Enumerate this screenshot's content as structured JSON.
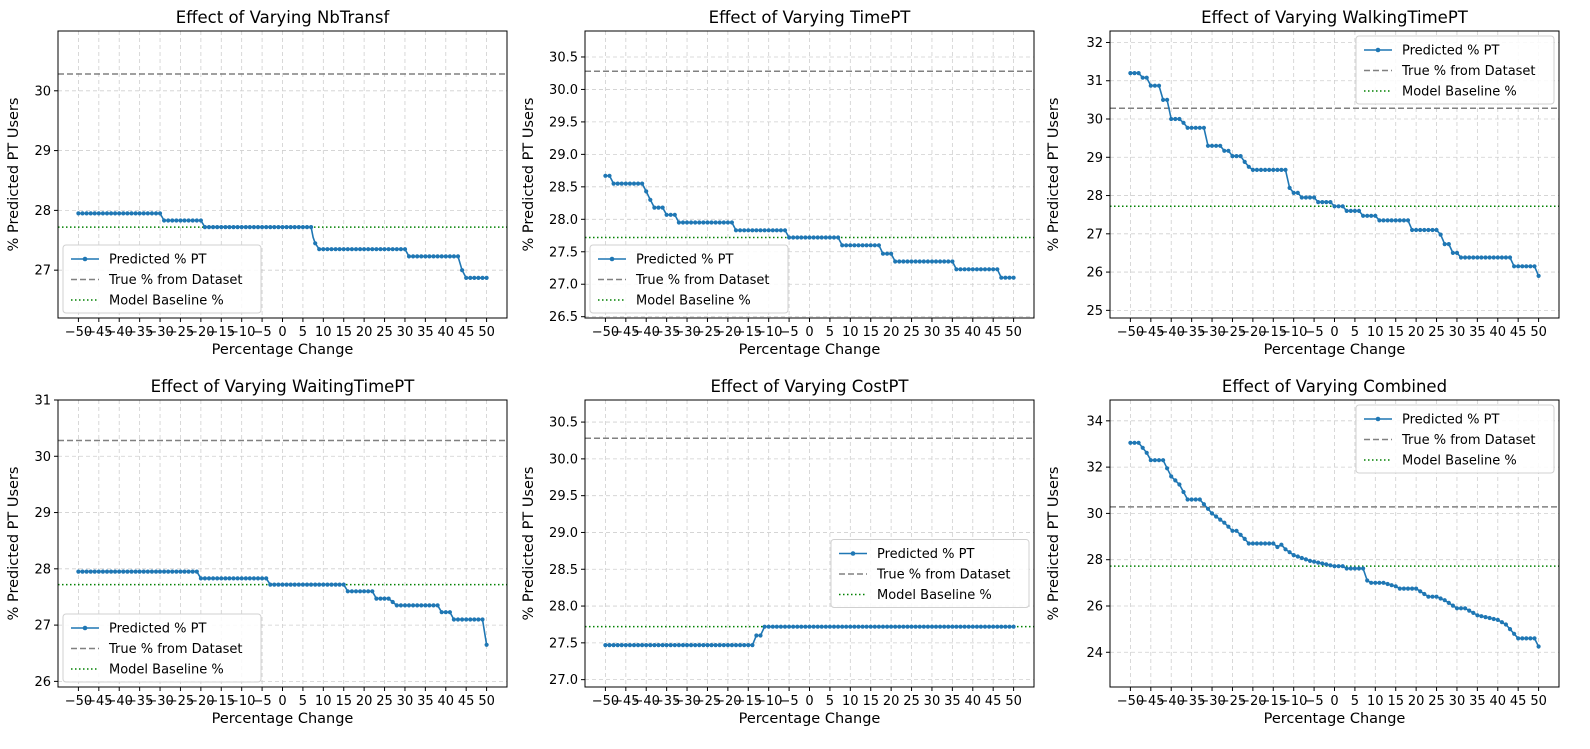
{
  "chart_data": [
    {
      "type": "line",
      "title": "Effect of Varying NbTransf",
      "xlabel": "Percentage Change",
      "ylabel": "% Predicted PT Users",
      "xlim": [
        -55,
        55
      ],
      "ylim": [
        26.2,
        31.0
      ],
      "xticks": [
        -50,
        -45,
        -40,
        -35,
        -30,
        -25,
        -20,
        -15,
        -10,
        -5,
        0,
        5,
        10,
        15,
        20,
        25,
        30,
        35,
        40,
        45,
        50
      ],
      "xtick_labels": [
        "−50",
        "−45",
        "−40",
        "−35",
        "−30",
        "−25",
        "−20",
        "−15",
        "−10",
        "−5",
        "0",
        "5",
        "10",
        "15",
        "20",
        "25",
        "30",
        "35",
        "40",
        "45",
        "50"
      ],
      "yticks": [
        27,
        28,
        29,
        30
      ],
      "ytick_labels": [
        "27",
        "28",
        "29",
        "30"
      ],
      "grid": true,
      "legend_position": "lower-left",
      "true_pct": 30.28,
      "baseline_pct": 27.72,
      "series": [
        {
          "name": "Predicted % PT",
          "color": "#1f77b4",
          "marker": "circle",
          "line": "solid",
          "x": [
            -50,
            -30,
            -29,
            -20,
            -19,
            7,
            7.5,
            8,
            9,
            30,
            31,
            43,
            44,
            45,
            50
          ],
          "y": [
            27.95,
            27.95,
            27.83,
            27.83,
            27.72,
            27.72,
            27.55,
            27.45,
            27.35,
            27.35,
            27.23,
            27.23,
            27.0,
            26.87,
            26.87
          ]
        },
        {
          "name": "True % from Dataset",
          "color": "#808080",
          "line": "dashed"
        },
        {
          "name": "Model Baseline %",
          "color": "#008000",
          "line": "dotted"
        }
      ]
    },
    {
      "type": "line",
      "title": "Effect of Varying TimePT",
      "xlabel": "Percentage Change",
      "ylabel": "% Predicted PT Users",
      "xlim": [
        -55,
        55
      ],
      "ylim": [
        26.48,
        30.9
      ],
      "xticks": [
        -50,
        -45,
        -40,
        -35,
        -30,
        -25,
        -20,
        -15,
        -10,
        -5,
        0,
        5,
        10,
        15,
        20,
        25,
        30,
        35,
        40,
        45,
        50
      ],
      "xtick_labels": [
        "−50",
        "−45",
        "−40",
        "−35",
        "−30",
        "−25",
        "−20",
        "−15",
        "−10",
        "−5",
        "0",
        "5",
        "10",
        "15",
        "20",
        "25",
        "30",
        "35",
        "40",
        "45",
        "50"
      ],
      "yticks": [
        26.5,
        27.0,
        27.5,
        28.0,
        28.5,
        29.0,
        29.5,
        30.0,
        30.5
      ],
      "ytick_labels": [
        "26.5",
        "27.0",
        "27.5",
        "28.0",
        "28.5",
        "29.0",
        "29.5",
        "30.0",
        "30.5"
      ],
      "grid": true,
      "legend_position": "lower-left",
      "true_pct": 30.28,
      "baseline_pct": 27.72,
      "series": [
        {
          "name": "Predicted % PT",
          "color": "#1f77b4",
          "marker": "circle",
          "line": "solid",
          "x": [
            -50,
            -49,
            -48,
            -47,
            -41,
            -40,
            -39,
            -38,
            -36,
            -35,
            -33,
            -32,
            -30,
            -29,
            -19,
            -18,
            -6,
            -5,
            7,
            8,
            17,
            18,
            20,
            21,
            35,
            36,
            46,
            47,
            50
          ],
          "y": [
            28.67,
            28.67,
            28.55,
            28.55,
            28.55,
            28.43,
            28.3,
            28.18,
            28.18,
            28.07,
            28.07,
            27.95,
            27.95,
            27.95,
            27.95,
            27.83,
            27.83,
            27.72,
            27.72,
            27.6,
            27.6,
            27.47,
            27.47,
            27.35,
            27.35,
            27.23,
            27.23,
            27.1,
            27.1
          ]
        },
        {
          "name": "True % from Dataset",
          "color": "#808080",
          "line": "dashed"
        },
        {
          "name": "Model Baseline %",
          "color": "#008000",
          "line": "dotted"
        }
      ]
    },
    {
      "type": "line",
      "title": "Effect of Varying WalkingTimePT",
      "xlabel": "Percentage Change",
      "ylabel": "% Predicted PT Users",
      "xlim": [
        -55,
        55
      ],
      "ylim": [
        24.8,
        32.3
      ],
      "xticks": [
        -50,
        -45,
        -40,
        -35,
        -30,
        -25,
        -20,
        -15,
        -10,
        -5,
        0,
        5,
        10,
        15,
        20,
        25,
        30,
        35,
        40,
        45,
        50
      ],
      "xtick_labels": [
        "−50",
        "−45",
        "−40",
        "−35",
        "−30",
        "−25",
        "−20",
        "−15",
        "−10",
        "−5",
        "0",
        "5",
        "10",
        "15",
        "20",
        "25",
        "30",
        "35",
        "40",
        "45",
        "50"
      ],
      "yticks": [
        25,
        26,
        27,
        28,
        29,
        30,
        31,
        32
      ],
      "ytick_labels": [
        "25",
        "26",
        "27",
        "28",
        "29",
        "30",
        "31",
        "32"
      ],
      "grid": true,
      "legend_position": "upper-right",
      "true_pct": 30.28,
      "baseline_pct": 27.72,
      "series": [
        {
          "name": "Predicted % PT",
          "color": "#1f77b4",
          "marker": "circle",
          "line": "solid",
          "x": [
            -50,
            -48,
            -47,
            -46,
            -45,
            -43,
            -42,
            -41,
            -40,
            -38,
            -37,
            -36,
            -32,
            -31,
            -28,
            -27,
            -26,
            -25,
            -23,
            -22,
            -21,
            -20,
            -12,
            -11,
            -10,
            -9,
            -8,
            -5,
            -4,
            -1,
            0,
            2,
            3,
            6,
            7,
            10,
            11,
            18,
            19,
            25,
            26,
            27,
            28,
            29,
            30,
            31,
            32,
            33,
            34,
            43,
            44,
            49,
            50
          ],
          "y": [
            31.2,
            31.2,
            31.08,
            31.08,
            30.87,
            30.87,
            30.5,
            30.5,
            30.0,
            30.0,
            29.9,
            29.77,
            29.77,
            29.3,
            29.3,
            29.17,
            29.17,
            29.03,
            29.03,
            28.88,
            28.75,
            28.67,
            28.67,
            28.2,
            28.07,
            28.07,
            27.95,
            27.95,
            27.83,
            27.83,
            27.72,
            27.72,
            27.6,
            27.6,
            27.47,
            27.47,
            27.35,
            27.35,
            27.1,
            27.1,
            26.98,
            26.73,
            26.73,
            26.5,
            26.5,
            26.38,
            26.38,
            26.38,
            26.38,
            26.38,
            26.15,
            26.15,
            25.9
          ]
        },
        {
          "name": "True % from Dataset",
          "color": "#808080",
          "line": "dashed"
        },
        {
          "name": "Model Baseline %",
          "color": "#008000",
          "line": "dotted"
        }
      ]
    },
    {
      "type": "line",
      "title": "Effect of Varying WaitingTimePT",
      "xlabel": "Percentage Change",
      "ylabel": "% Predicted PT Users",
      "xlim": [
        -55,
        55
      ],
      "ylim": [
        25.9,
        31.0
      ],
      "xticks": [
        -50,
        -45,
        -40,
        -35,
        -30,
        -25,
        -20,
        -15,
        -10,
        -5,
        0,
        5,
        10,
        15,
        20,
        25,
        30,
        35,
        40,
        45,
        50
      ],
      "xtick_labels": [
        "−50",
        "−45",
        "−40",
        "−35",
        "−30",
        "−25",
        "−20",
        "−15",
        "−10",
        "−5",
        "0",
        "5",
        "10",
        "15",
        "20",
        "25",
        "30",
        "35",
        "40",
        "45",
        "50"
      ],
      "yticks": [
        26,
        27,
        28,
        29,
        30,
        31
      ],
      "ytick_labels": [
        "26",
        "27",
        "28",
        "29",
        "30",
        "31"
      ],
      "grid": true,
      "legend_position": "lower-left",
      "true_pct": 30.28,
      "baseline_pct": 27.72,
      "series": [
        {
          "name": "Predicted % PT",
          "color": "#1f77b4",
          "marker": "circle",
          "line": "solid",
          "x": [
            -50,
            -21,
            -20,
            -4,
            -3,
            15,
            16,
            22,
            23,
            25,
            26,
            28,
            29,
            38,
            39,
            41,
            42,
            49,
            50
          ],
          "y": [
            27.95,
            27.95,
            27.83,
            27.83,
            27.72,
            27.72,
            27.6,
            27.6,
            27.47,
            27.47,
            27.47,
            27.35,
            27.35,
            27.35,
            27.23,
            27.23,
            27.1,
            27.1,
            26.65
          ]
        },
        {
          "name": "True % from Dataset",
          "color": "#808080",
          "line": "dashed"
        },
        {
          "name": "Model Baseline %",
          "color": "#008000",
          "line": "dotted"
        }
      ]
    },
    {
      "type": "line",
      "title": "Effect of Varying CostPT",
      "xlabel": "Percentage Change",
      "ylabel": "% Predicted PT Users",
      "xlim": [
        -55,
        55
      ],
      "ylim": [
        26.9,
        30.8
      ],
      "xticks": [
        -50,
        -45,
        -40,
        -35,
        -30,
        -25,
        -20,
        -15,
        -10,
        -5,
        0,
        5,
        10,
        15,
        20,
        25,
        30,
        35,
        40,
        45,
        50
      ],
      "xtick_labels": [
        "−50",
        "−45",
        "−40",
        "−35",
        "−30",
        "−25",
        "−20",
        "−15",
        "−10",
        "−5",
        "0",
        "5",
        "10",
        "15",
        "20",
        "25",
        "30",
        "35",
        "40",
        "45",
        "50"
      ],
      "yticks": [
        27.0,
        27.5,
        28.0,
        28.5,
        29.0,
        29.5,
        30.0,
        30.5
      ],
      "ytick_labels": [
        "27.0",
        "27.5",
        "28.0",
        "28.5",
        "29.0",
        "29.5",
        "30.0",
        "30.5"
      ],
      "grid": true,
      "legend_position": "center-right",
      "true_pct": 30.28,
      "baseline_pct": 27.72,
      "series": [
        {
          "name": "Predicted % PT",
          "color": "#1f77b4",
          "marker": "circle",
          "line": "solid",
          "x": [
            -50,
            -14,
            -13,
            -12,
            -11,
            50
          ],
          "y": [
            27.47,
            27.47,
            27.6,
            27.6,
            27.72,
            27.72
          ]
        },
        {
          "name": "True % from Dataset",
          "color": "#808080",
          "line": "dashed"
        },
        {
          "name": "Model Baseline %",
          "color": "#008000",
          "line": "dotted"
        }
      ]
    },
    {
      "type": "line",
      "title": "Effect of Varying Combined",
      "xlabel": "Percentage Change",
      "ylabel": "% Predicted PT Users",
      "xlim": [
        -55,
        55
      ],
      "ylim": [
        22.5,
        34.9
      ],
      "xticks": [
        -50,
        -45,
        -40,
        -35,
        -30,
        -25,
        -20,
        -15,
        -10,
        -5,
        0,
        5,
        10,
        15,
        20,
        25,
        30,
        35,
        40,
        45,
        50
      ],
      "xtick_labels": [
        "−50",
        "−45",
        "−40",
        "−35",
        "−30",
        "−25",
        "−20",
        "−15",
        "−10",
        "−5",
        "0",
        "5",
        "10",
        "15",
        "20",
        "25",
        "30",
        "35",
        "40",
        "45",
        "50"
      ],
      "yticks": [
        24,
        26,
        28,
        30,
        32,
        34
      ],
      "ytick_labels": [
        "24",
        "26",
        "28",
        "30",
        "32",
        "34"
      ],
      "grid": true,
      "legend_position": "upper-right",
      "true_pct": 30.28,
      "baseline_pct": 27.72,
      "series": [
        {
          "name": "Predicted % PT",
          "color": "#1f77b4",
          "marker": "circle",
          "line": "solid",
          "x": [
            -50,
            -48,
            -46,
            -45,
            -42,
            -41,
            -40,
            -38,
            -36,
            -34,
            -33,
            -30,
            -27,
            -25,
            -24,
            -22,
            -21,
            -15,
            -14,
            -13,
            -12,
            -10,
            -6,
            0,
            2,
            3,
            5,
            7,
            8,
            9,
            10,
            12,
            15,
            16,
            18,
            20,
            23,
            25,
            27,
            30,
            32,
            35,
            40,
            42,
            43,
            44,
            45,
            46,
            47,
            48,
            49,
            50
          ],
          "y": [
            33.05,
            33.05,
            32.62,
            32.3,
            32.3,
            31.95,
            31.6,
            31.25,
            30.6,
            30.6,
            30.6,
            30.0,
            29.6,
            29.25,
            29.25,
            28.9,
            28.7,
            28.7,
            28.55,
            28.65,
            28.45,
            28.2,
            27.95,
            27.72,
            27.72,
            27.62,
            27.62,
            27.62,
            27.1,
            27.0,
            27.0,
            27.0,
            26.85,
            26.75,
            26.75,
            26.75,
            26.4,
            26.4,
            26.25,
            25.9,
            25.9,
            25.6,
            25.4,
            25.2,
            25.0,
            24.8,
            24.6,
            24.6,
            24.6,
            24.6,
            24.6,
            24.25
          ]
        },
        {
          "name": "True % from Dataset",
          "color": "#808080",
          "line": "dashed"
        },
        {
          "name": "Model Baseline %",
          "color": "#008000",
          "line": "dotted"
        }
      ]
    }
  ]
}
